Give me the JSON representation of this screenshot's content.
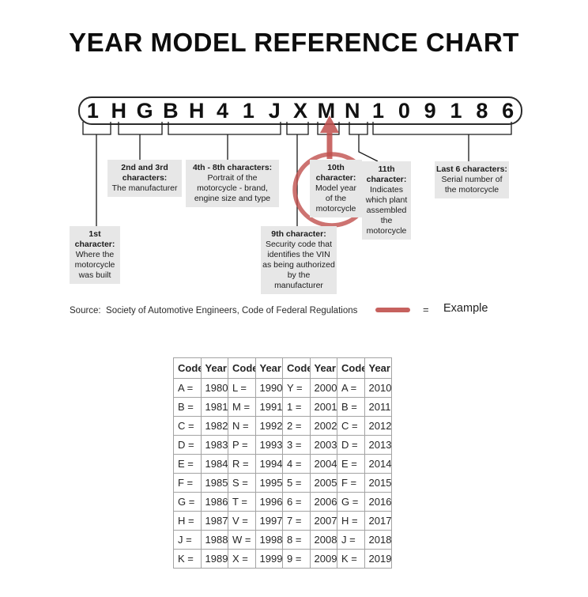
{
  "title": "YEAR MODEL REFERENCE CHART",
  "vin": {
    "characters": [
      "1",
      "H",
      "G",
      "B",
      "H",
      "4",
      "1",
      "J",
      "X",
      "M",
      "N",
      "1",
      "0",
      "9",
      "1",
      "8",
      "6"
    ]
  },
  "callouts": {
    "first": {
      "heading": "1st character:",
      "body": "Where the motorcycle was built"
    },
    "second_third": {
      "heading": "2nd and 3rd characters:",
      "body": "The manufacturer"
    },
    "fourth_to_eighth": {
      "heading": "4th - 8th characters:",
      "body": "Portrait of the motorcycle - brand, engine size and type"
    },
    "ninth": {
      "heading": "9th character:",
      "body": "Security code that identifies the VIN as being authorized by the manufacturer"
    },
    "tenth": {
      "heading": "10th character:",
      "body": "Model year of the motorcycle"
    },
    "eleventh": {
      "heading": "11th character:",
      "body": "Indicates which plant assembled the motorcycle"
    },
    "last_six": {
      "heading": "Last 6 characters:",
      "body": "Serial number of the motorcycle"
    }
  },
  "source_text": "Source:  Society of Automotive Engineers, Code of Federal Regulations",
  "legend": {
    "equals": "=",
    "label": "Example"
  },
  "annotations": {
    "circled_vin_character": "M",
    "circled_table_entry": "M = 1991"
  },
  "table": {
    "header": [
      "Code",
      "Year",
      "Code",
      "Year",
      "Code",
      "Year",
      "Code",
      "Year"
    ],
    "rows": [
      [
        "A =",
        "1980",
        "L =",
        "1990",
        "Y =",
        "2000",
        "A =",
        "2010"
      ],
      [
        "B =",
        "1981",
        "M =",
        "1991",
        "1 =",
        "2001",
        "B =",
        "2011"
      ],
      [
        "C =",
        "1982",
        "N =",
        "1992",
        "2 =",
        "2002",
        "C =",
        "2012"
      ],
      [
        "D =",
        "1983",
        "P =",
        "1993",
        "3 =",
        "2003",
        "D =",
        "2013"
      ],
      [
        "E =",
        "1984",
        "R =",
        "1994",
        "4 =",
        "2004",
        "E =",
        "2014"
      ],
      [
        "F =",
        "1985",
        "S =",
        "1995",
        "5 =",
        "2005",
        "F =",
        "2015"
      ],
      [
        "G =",
        "1986",
        "T =",
        "1996",
        "6 =",
        "2006",
        "G =",
        "2016"
      ],
      [
        "H =",
        "1987",
        "V =",
        "1997",
        "7 =",
        "2007",
        "H =",
        "2017"
      ],
      [
        "J =",
        "1988",
        "W =",
        "1998",
        "8 =",
        "2008",
        "J =",
        "2018"
      ],
      [
        "K =",
        "1989",
        "X =",
        "1999",
        "9 =",
        "2009",
        "K =",
        "2019"
      ]
    ]
  },
  "colors": {
    "accent_red": "#c0504d",
    "callout_bg": "#e7e7e7",
    "line_color": "#1a1a1a",
    "table_border": "#a3a3a3"
  }
}
